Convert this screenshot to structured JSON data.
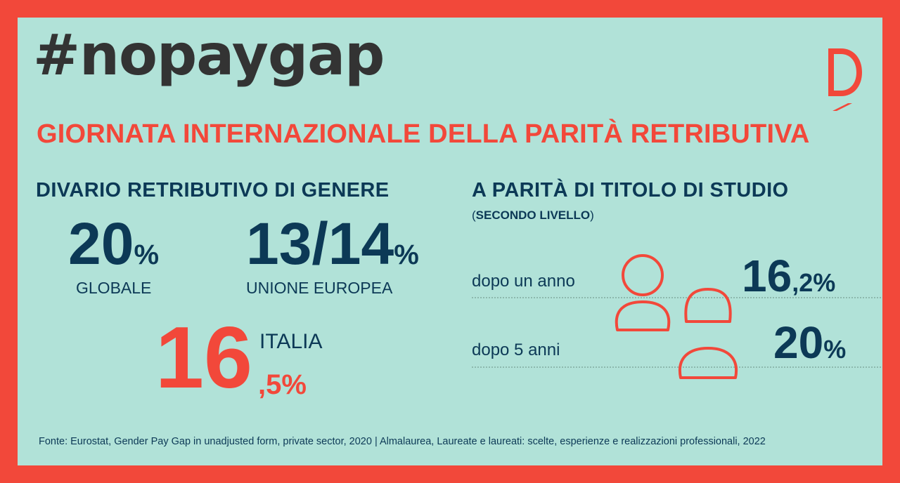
{
  "hashtag": "#nopaygap",
  "title": "GIORNATA INTERNAZIONALE DELLA PARITÀ RETRIBUTIVA",
  "left": {
    "heading": "DIVARIO RETRIBUTIVO DI GENERE",
    "global": {
      "value": "20",
      "unit": "%",
      "label": "GLOBALE"
    },
    "eu": {
      "value": "13/14",
      "unit": "%",
      "label": "UNIONE EUROPEA"
    },
    "italy": {
      "value": "16",
      "decimal": ",5%",
      "label": "ITALIA"
    }
  },
  "right": {
    "heading": "A PARITÀ DI TITOLO DI STUDIO",
    "subheading_open": "(",
    "subheading": "SECONDO LIVELLO",
    "subheading_close": ")",
    "rows": [
      {
        "label": "dopo un anno",
        "value": "16",
        "unit": ",2%"
      },
      {
        "label": "dopo 5 anni",
        "value": "20",
        "unit": "%"
      }
    ]
  },
  "footer": "Fonte: Eurostat, Gender Pay Gap in unadjusted form, private sector, 2020 | Almalaurea, Laureate e laureati: scelte, esperienze e realizzazioni professionali, 2022",
  "colors": {
    "frame": "#f2483a",
    "panel": "#b1e2d8",
    "navy": "#0c3956",
    "hashtag": "#333333"
  },
  "icons": [
    "logo-d-icon",
    "person-icon"
  ]
}
